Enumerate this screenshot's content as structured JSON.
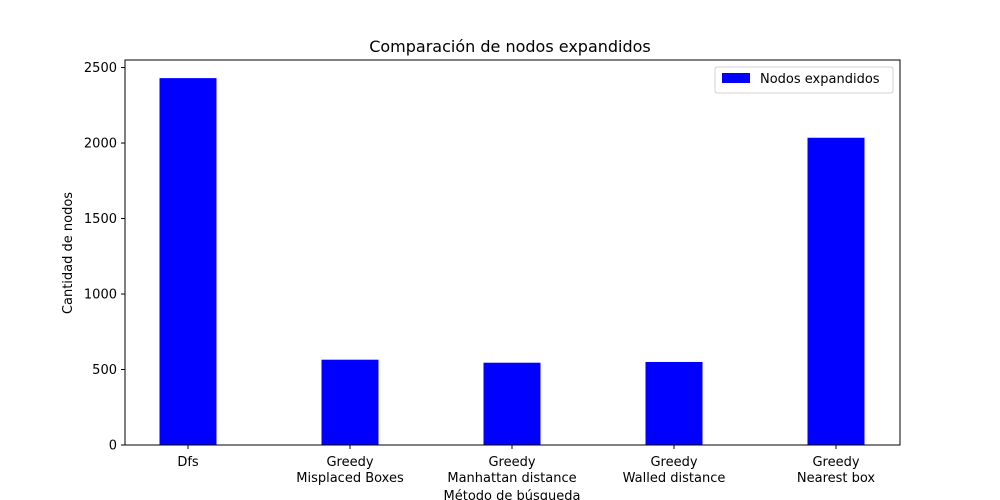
{
  "chart_data": {
    "type": "bar",
    "title": "Comparación de nodos expandidos",
    "xlabel": "Método de búsqueda",
    "ylabel": "Cantidad de nodos",
    "categories": [
      [
        "Dfs"
      ],
      [
        "Greedy",
        "Misplaced Boxes"
      ],
      [
        "Greedy",
        "Manhattan distance"
      ],
      [
        "Greedy",
        "Walled distance"
      ],
      [
        "Greedy",
        "Nearest box"
      ]
    ],
    "series": [
      {
        "name": "Nodos expandidos",
        "values": [
          2430,
          565,
          545,
          550,
          2035
        ],
        "color": "#0000ff"
      }
    ],
    "ylim": [
      0,
      2550
    ],
    "yticks": [
      0,
      500,
      1000,
      1500,
      2000,
      2500
    ],
    "grid": false,
    "legend": "top-right"
  }
}
